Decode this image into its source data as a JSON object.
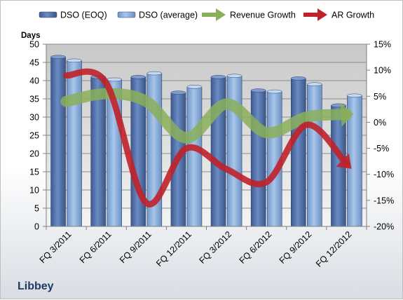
{
  "chart_data": {
    "type": "bar",
    "company": "Libbey",
    "y_axis_label": "Days",
    "categories": [
      "FQ 3/2011",
      "FQ 6/2011",
      "FQ 9/2011",
      "FQ 12/2011",
      "FQ 3/2012",
      "FQ 6/2012",
      "FQ 9/2012",
      "FQ 12/2012"
    ],
    "left_axis": {
      "min": 0,
      "max": 50,
      "ticks": [
        "0",
        "5",
        "10",
        "15",
        "20",
        "25",
        "30",
        "35",
        "40",
        "45",
        "50"
      ]
    },
    "right_axis": {
      "min": -20,
      "max": 15,
      "unit": "%",
      "ticks": [
        "-20%",
        "-15%",
        "-10%",
        "-5%",
        "0%",
        "5%",
        "10%",
        "15%"
      ]
    },
    "legend_position": "top",
    "grid": true,
    "bar_series": [
      {
        "name": "DSO (EOQ)",
        "color": "#4f6fa8",
        "values": [
          46.5,
          41,
          41,
          36.7,
          41,
          37.3,
          40.6,
          33.2
        ]
      },
      {
        "name": "DSO (average)",
        "color": "#8fb2dc",
        "values": [
          45.5,
          40.3,
          42,
          38.3,
          41.3,
          37,
          39,
          35.9
        ]
      }
    ],
    "line_series": [
      {
        "name": "Revenue Growth",
        "color": "#8aaf5a",
        "axis": "right",
        "values": [
          4,
          5.5,
          4,
          -3,
          3.5,
          -2,
          1,
          1.5
        ]
      },
      {
        "name": "AR Growth",
        "color": "#c0212a",
        "axis": "right",
        "values": [
          9,
          7.5,
          -15.5,
          -5,
          -9,
          -11.5,
          -0.5,
          -8
        ]
      }
    ]
  }
}
